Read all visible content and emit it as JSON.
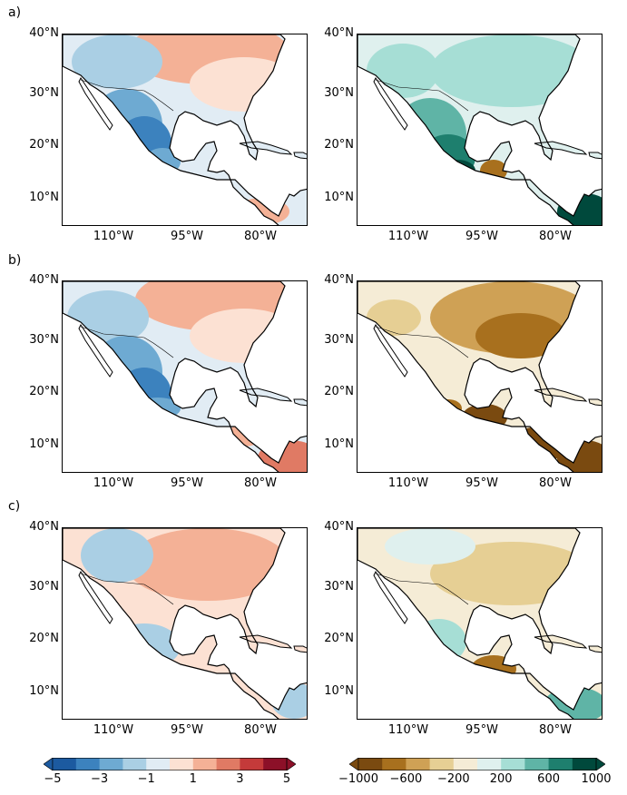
{
  "panel_labels": [
    "a)",
    "b)",
    "c)"
  ],
  "lat_labels": [
    "40°N",
    "30°N",
    "20°N",
    "10°N"
  ],
  "lon_labels": [
    "110°W",
    "95°W",
    "80°W"
  ],
  "colorbar_left": {
    "colors": [
      "#1c5aa0",
      "#3c82be",
      "#6eaad2",
      "#aacfe4",
      "#e1ecf4",
      "#fce1d3",
      "#f4b196",
      "#e07a64",
      "#c43a3a",
      "#8c1028"
    ],
    "ticks": [
      "−5",
      "−3",
      "−1",
      "1",
      "3",
      "5"
    ]
  },
  "colorbar_right": {
    "colors": [
      "#7a4a10",
      "#a8701e",
      "#cfa155",
      "#e6cf94",
      "#f5ecd6",
      "#dff0ee",
      "#a6ded5",
      "#5fb4a6",
      "#1e7f6e",
      "#00493c"
    ],
    "ticks": [
      "−1000",
      "−600",
      "−200",
      "200",
      "600",
      "1000"
    ]
  },
  "colors": {
    "land_neutral": "#f4f4f4",
    "ocean": "#ffffff",
    "coast": "#000000"
  }
}
